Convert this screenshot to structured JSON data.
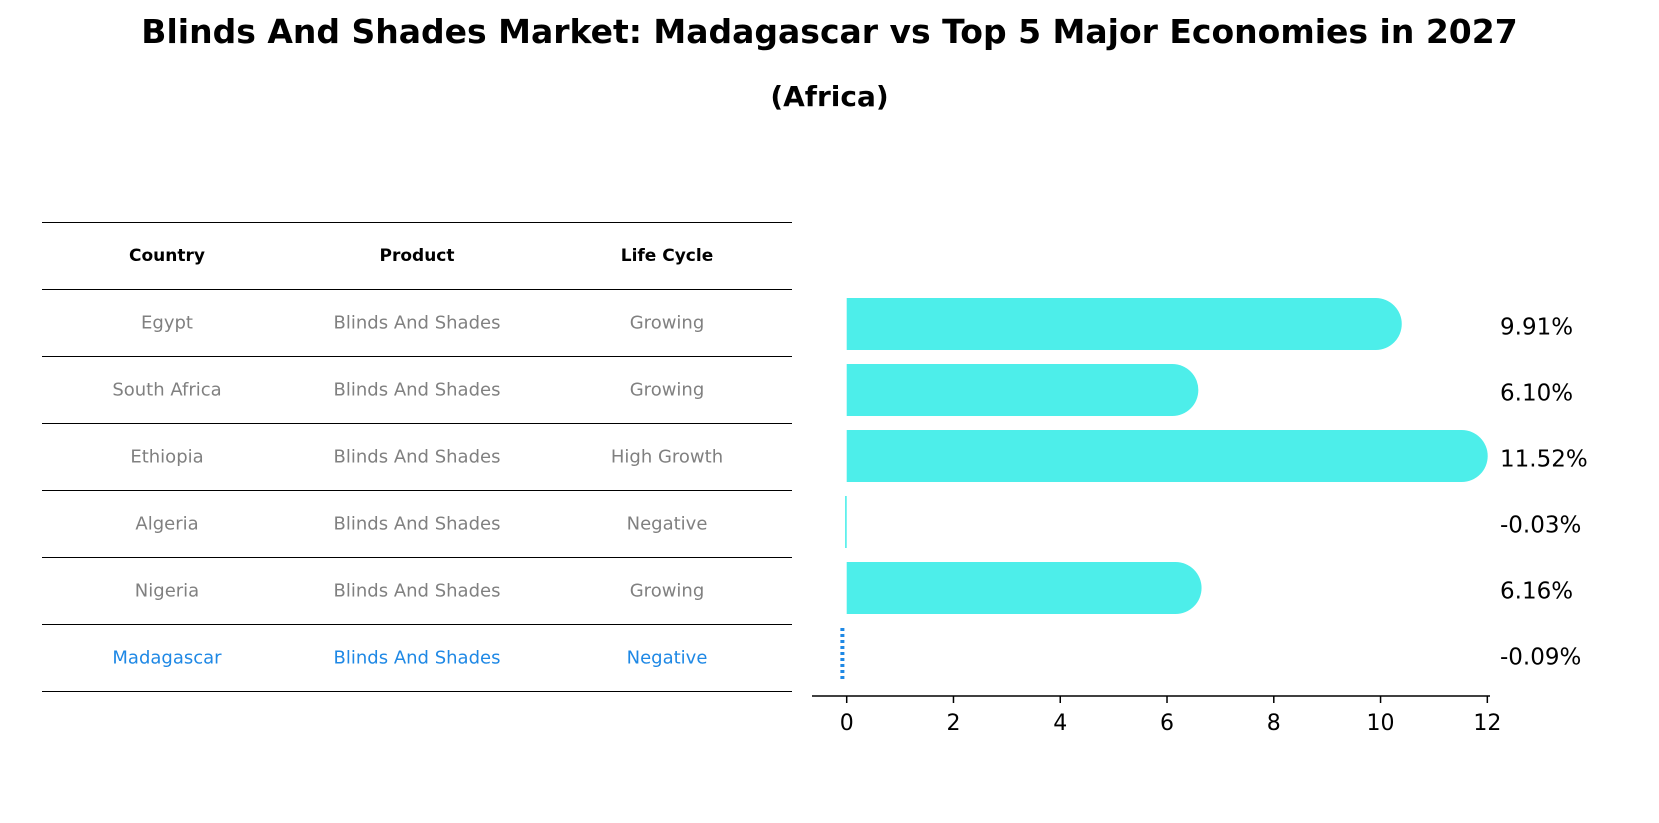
{
  "title": "Blinds And Shades Market: Madagascar vs Top 5 Major Economies in 2027",
  "subtitle": "(Africa)",
  "table": {
    "headers": [
      "Country",
      "Product",
      "Life Cycle"
    ],
    "rows": [
      {
        "country": "Egypt",
        "product": "Blinds And Shades",
        "life_cycle": "Growing"
      },
      {
        "country": "South Africa",
        "product": "Blinds And Shades",
        "life_cycle": "Growing"
      },
      {
        "country": "Ethiopia",
        "product": "Blinds And Shades",
        "life_cycle": "High Growth"
      },
      {
        "country": "Algeria",
        "product": "Blinds And Shades",
        "life_cycle": "Negative"
      },
      {
        "country": "Nigeria",
        "product": "Blinds And Shades",
        "life_cycle": "Growing"
      },
      {
        "country": "Madagascar",
        "product": "Blinds And Shades",
        "life_cycle": "Negative"
      }
    ]
  },
  "colors": {
    "bar": "#4deeea",
    "highlight": "#1e88e5",
    "muted_text": "#808080"
  },
  "chart_data": {
    "type": "bar",
    "orientation": "horizontal",
    "categories": [
      "Egypt",
      "South Africa",
      "Ethiopia",
      "Algeria",
      "Nigeria",
      "Madagascar"
    ],
    "values": [
      9.91,
      6.1,
      11.52,
      -0.03,
      6.16,
      -0.09
    ],
    "data_labels": [
      "9.91%",
      "6.10%",
      "11.52%",
      "-0.03%",
      "6.16%",
      "-0.09%"
    ],
    "highlight": "Madagascar",
    "xlim": [
      -0.65,
      12.05
    ],
    "xticks": [
      0,
      2,
      4,
      6,
      8,
      10,
      12
    ],
    "grid": false
  }
}
